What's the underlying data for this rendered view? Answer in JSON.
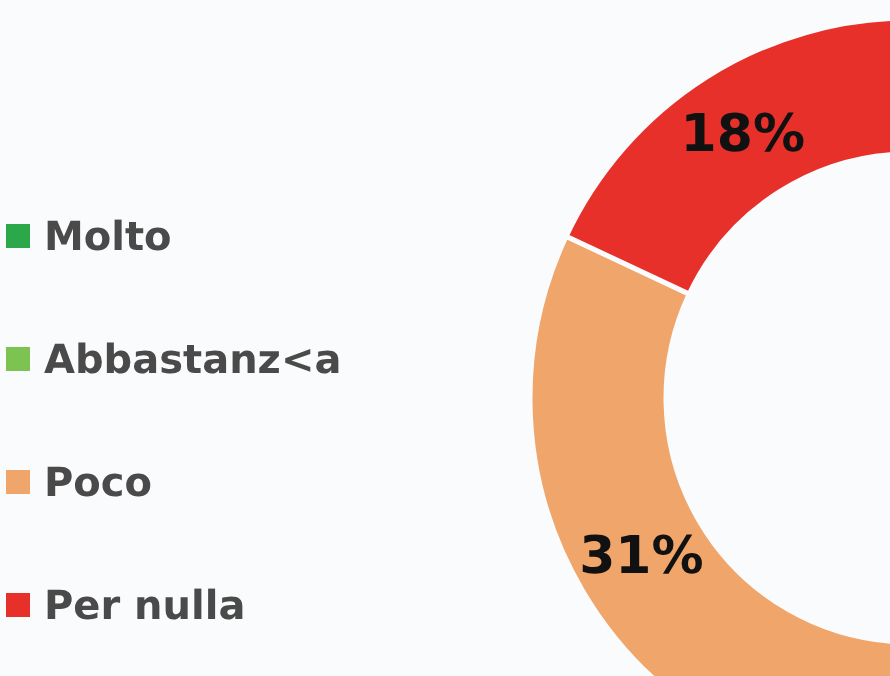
{
  "chart_data": {
    "type": "donut",
    "categories": [
      "Molto",
      "Abbastanz<a",
      "Poco",
      "Per nulla"
    ],
    "values": [
      null,
      null,
      31,
      18
    ],
    "colors": [
      "#2aa84a",
      "#7dc352",
      "#f0a56b",
      "#e8302a"
    ],
    "value_labels": [
      null,
      null,
      "31%",
      "18%"
    ],
    "legend": "left"
  }
}
